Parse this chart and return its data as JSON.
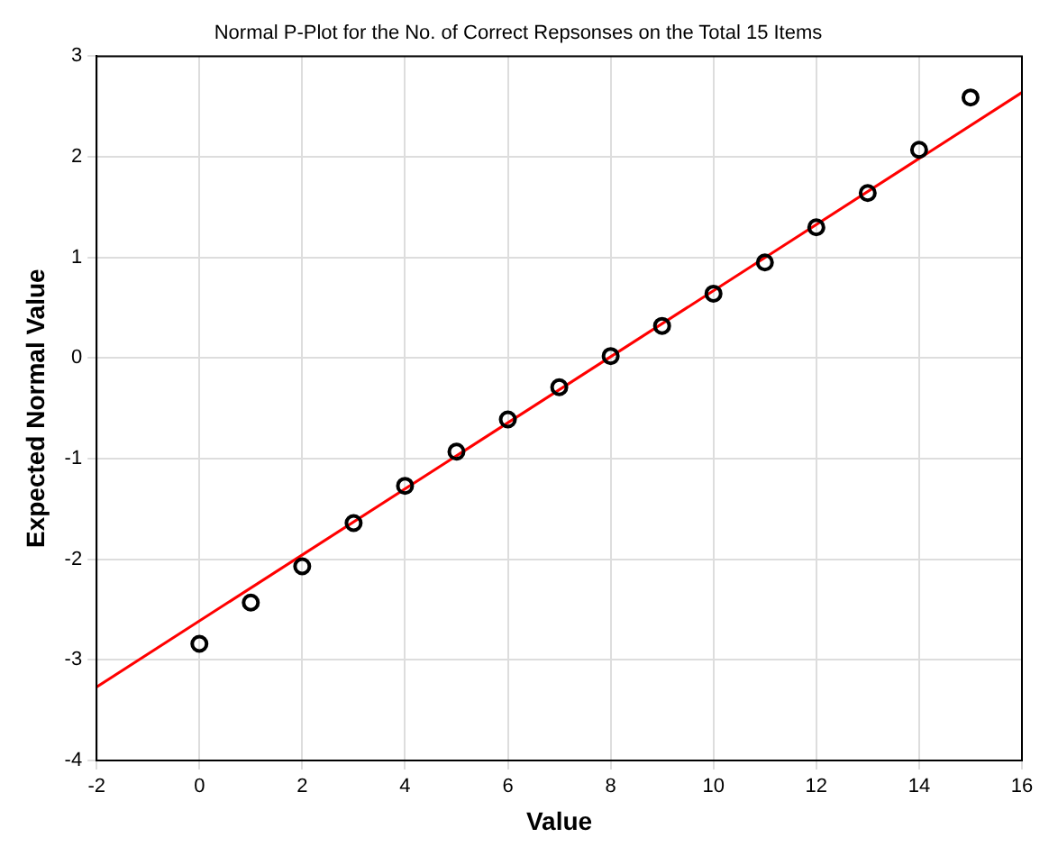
{
  "chart_data": {
    "type": "scatter",
    "title": "Normal P-Plot for the No. of Correct Repsonses on the Total 15 Items",
    "xlabel": "Value",
    "ylabel": "Expected Normal Value",
    "xlim": [
      -2,
      16
    ],
    "xticks": [
      -2,
      0,
      2,
      4,
      6,
      8,
      10,
      12,
      14,
      16
    ],
    "ylim": [
      -4,
      3
    ],
    "yticks": [
      -4,
      -3,
      -2,
      -1,
      0,
      1,
      2,
      3
    ],
    "grid": true,
    "marker": "circle",
    "series": [
      {
        "color": "#000000",
        "x": [
          0,
          1,
          2,
          3,
          4,
          5,
          6,
          7,
          8,
          9,
          10,
          11,
          12,
          13,
          14,
          15
        ],
        "values": [
          -2.84,
          -2.43,
          -2.07,
          -1.64,
          -1.27,
          -0.93,
          -0.61,
          -0.29,
          0.02,
          0.32,
          0.64,
          0.95,
          1.3,
          1.64,
          2.07,
          2.59
        ]
      },
      {
        "type": "line",
        "color": "#ff0000",
        "marker": "none",
        "x": [
          -2,
          16
        ],
        "values": [
          -3.27,
          2.64
        ]
      }
    ]
  }
}
